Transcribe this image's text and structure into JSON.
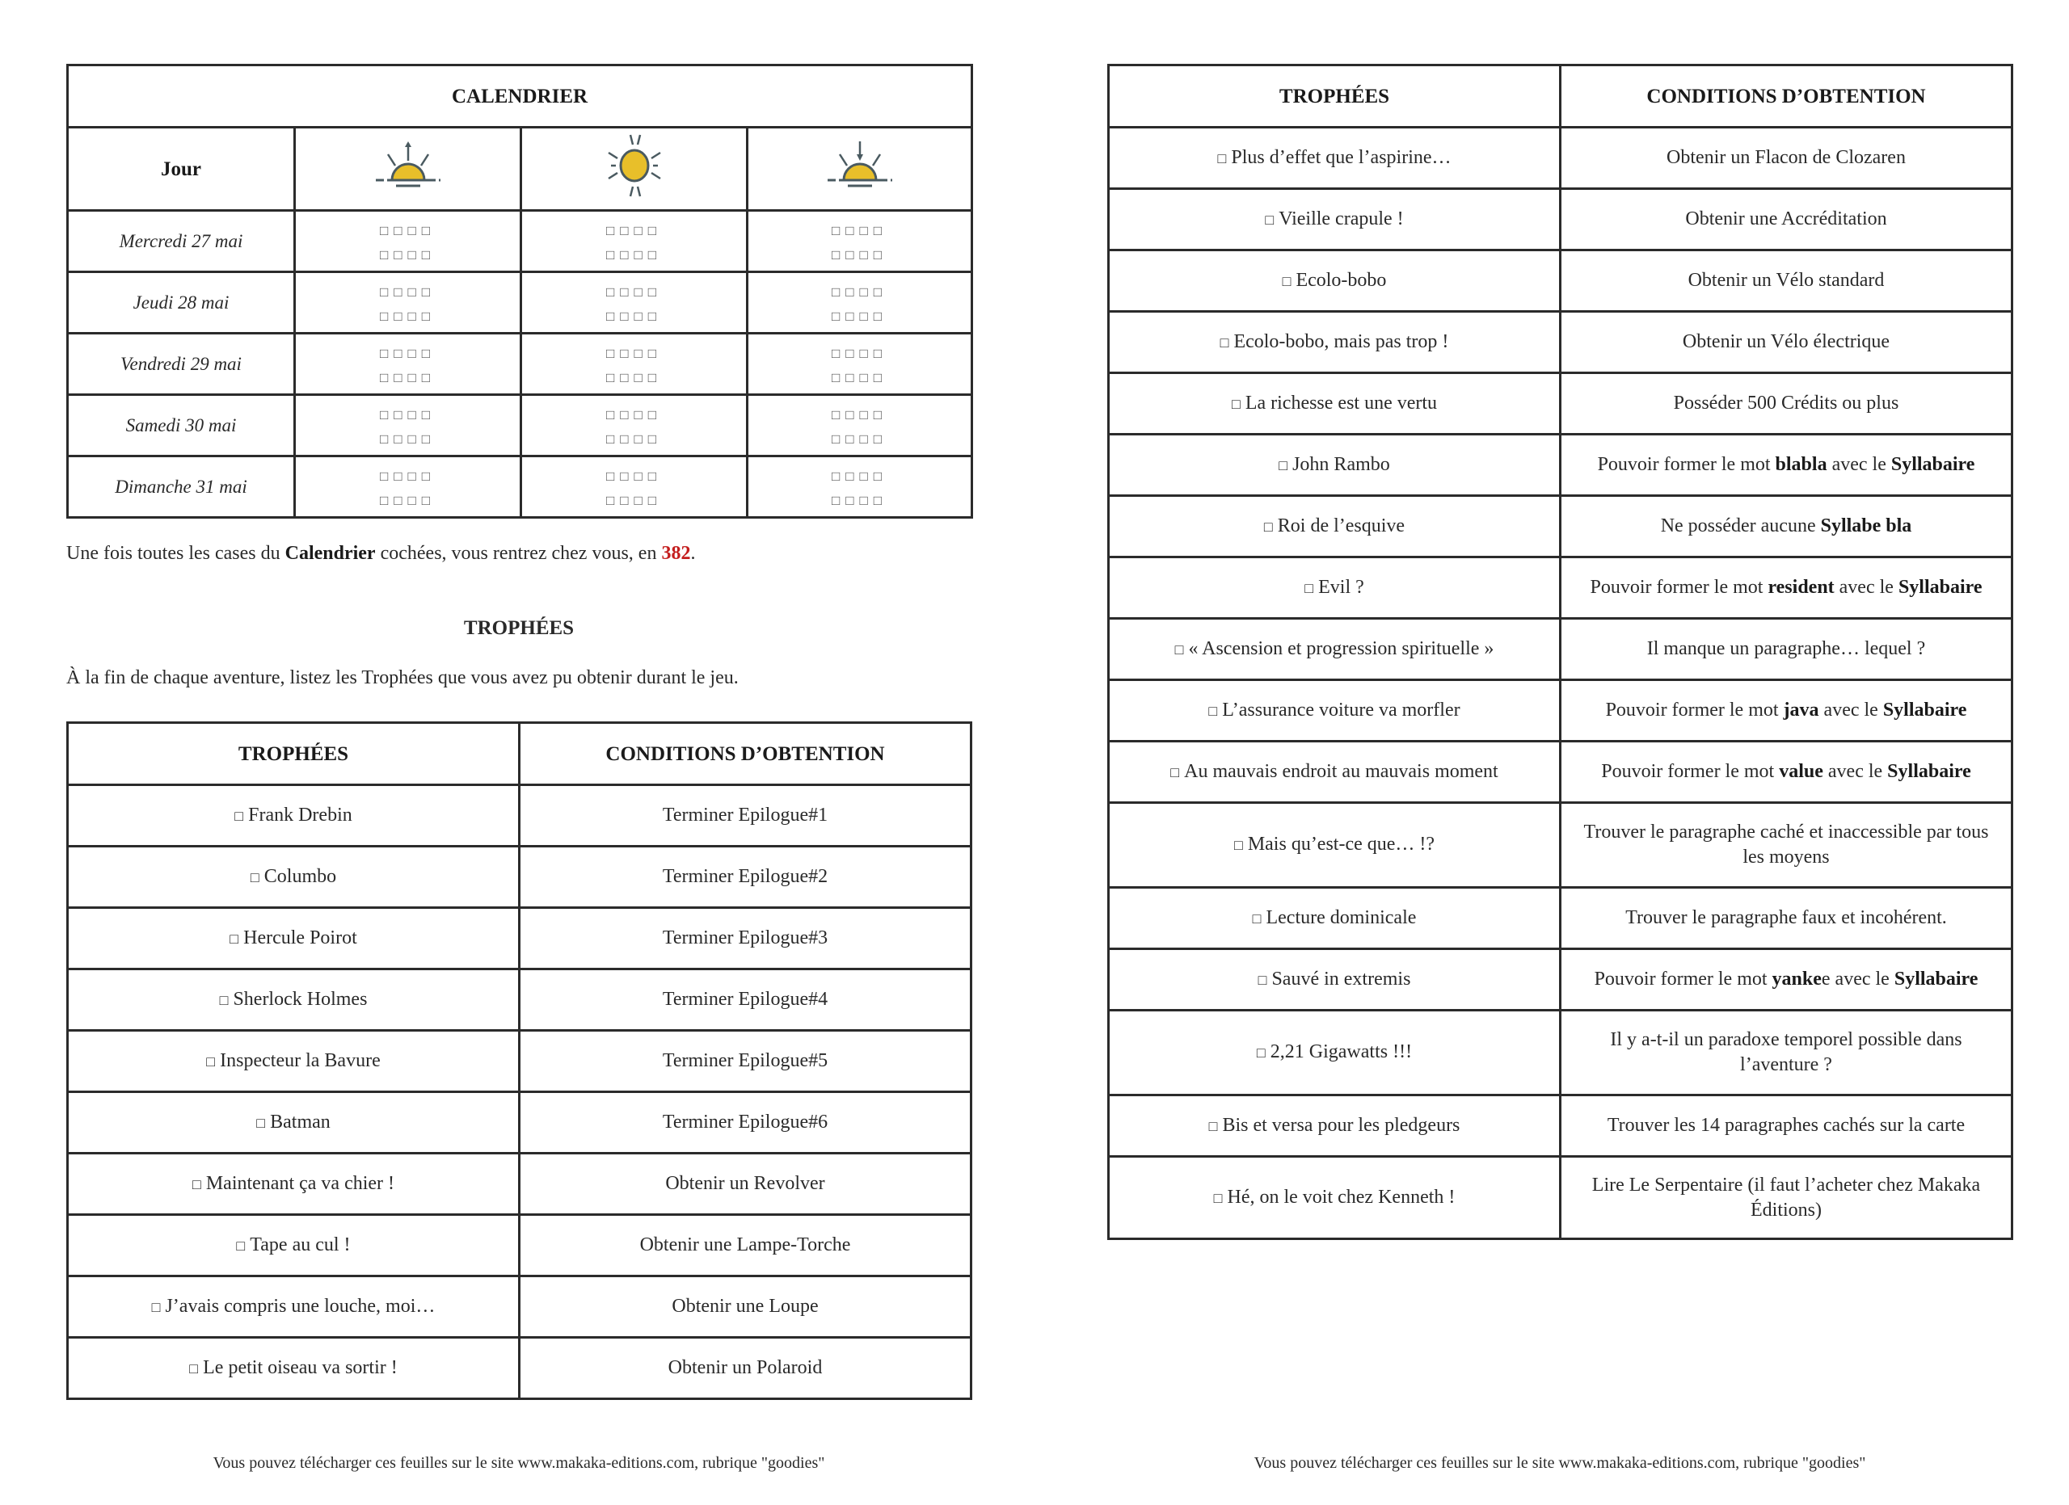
{
  "calendar": {
    "title": "CALENDRIER",
    "day_header": "Jour",
    "icons": [
      "sunrise-icon",
      "sun-icon",
      "sunset-icon"
    ],
    "checkbox_row": "□□□□",
    "days": [
      "Mercredi 27 mai",
      "Jeudi 28 mai",
      "Vendredi 29 mai",
      "Samedi 30 mai",
      "Dimanche 31 mai"
    ]
  },
  "note": {
    "pre": "Une fois toutes les cases du ",
    "bold": "Calendrier",
    "mid": " cochées, vous rentrez chez vous, en ",
    "number": "382",
    "post": "."
  },
  "trophies_section": {
    "title": "TROPHÉES",
    "intro": "À la fin de chaque aventure, listez les Trophées que vous avez pu obtenir durant le jeu."
  },
  "checkbox_glyph": "□",
  "table_headers": {
    "trophies": "TROPHÉES",
    "conditions": "CONDITIONS D’OBTENTION"
  },
  "left_trophies": [
    {
      "name": "Frank Drebin",
      "cond": [
        {
          "t": "Terminer Epilogue#1"
        }
      ]
    },
    {
      "name": "Columbo",
      "cond": [
        {
          "t": "Terminer Epilogue#2"
        }
      ]
    },
    {
      "name": "Hercule Poirot",
      "cond": [
        {
          "t": "Terminer Epilogue#3"
        }
      ]
    },
    {
      "name": "Sherlock Holmes",
      "cond": [
        {
          "t": "Terminer Epilogue#4"
        }
      ]
    },
    {
      "name": "Inspecteur la Bavure",
      "cond": [
        {
          "t": "Terminer Epilogue#5"
        }
      ]
    },
    {
      "name": "Batman",
      "cond": [
        {
          "t": "Terminer Epilogue#6"
        }
      ]
    },
    {
      "name": "Maintenant ça va chier !",
      "cond": [
        {
          "t": "Obtenir un Revolver"
        }
      ]
    },
    {
      "name": "Tape au cul !",
      "cond": [
        {
          "t": "Obtenir une Lampe-Torche"
        }
      ]
    },
    {
      "name": "J’avais compris une louche, moi…",
      "cond": [
        {
          "t": "Obtenir une Loupe"
        }
      ]
    },
    {
      "name": "Le petit oiseau va sortir !",
      "cond": [
        {
          "t": "Obtenir un Polaroid"
        }
      ]
    }
  ],
  "right_trophies": [
    {
      "name": "Plus d’effet que l’aspirine…",
      "cond": [
        {
          "t": "Obtenir un Flacon de Clozaren"
        }
      ]
    },
    {
      "name": "Vieille crapule !",
      "cond": [
        {
          "t": "Obtenir une Accréditation"
        }
      ]
    },
    {
      "name": "Ecolo-bobo",
      "cond": [
        {
          "t": "Obtenir un Vélo standard"
        }
      ]
    },
    {
      "name": "Ecolo-bobo, mais pas trop !",
      "cond": [
        {
          "t": "Obtenir un Vélo électrique"
        }
      ]
    },
    {
      "name": "La richesse est une vertu",
      "cond": [
        {
          "t": "Posséder 500 Crédits ou plus"
        }
      ]
    },
    {
      "name": "John Rambo",
      "cond": [
        {
          "t": "Pouvoir former le mot "
        },
        {
          "t": "blabla",
          "b": true
        },
        {
          "t": " avec le "
        },
        {
          "t": "Syllabaire",
          "b": true
        }
      ]
    },
    {
      "name": "Roi de l’esquive",
      "cond": [
        {
          "t": "Ne posséder aucune "
        },
        {
          "t": "Syllabe bla",
          "b": true
        }
      ]
    },
    {
      "name": "Evil ?",
      "cond": [
        {
          "t": "Pouvoir former le mot "
        },
        {
          "t": "resident",
          "b": true
        },
        {
          "t": " avec le "
        },
        {
          "t": "Syllabaire",
          "b": true
        }
      ]
    },
    {
      "name": "« Ascension et progression spirituelle »",
      "cond": [
        {
          "t": "Il manque un paragraphe… lequel ?"
        }
      ]
    },
    {
      "name": "L’assurance voiture va morfler",
      "cond": [
        {
          "t": "Pouvoir former le mot "
        },
        {
          "t": "java",
          "b": true
        },
        {
          "t": " avec le "
        },
        {
          "t": "Syllabaire",
          "b": true
        }
      ]
    },
    {
      "name": "Au mauvais endroit au mauvais moment",
      "cond": [
        {
          "t": "Pouvoir former le mot "
        },
        {
          "t": "value",
          "b": true
        },
        {
          "t": " avec le "
        },
        {
          "t": "Syllabaire",
          "b": true
        }
      ]
    },
    {
      "name": "Mais qu’est-ce que… !?",
      "cond": [
        {
          "t": "Trouver le paragraphe caché et inaccessible par tous les moyens"
        }
      ]
    },
    {
      "name": "Lecture dominicale",
      "cond": [
        {
          "t": "Trouver le paragraphe faux et incohérent."
        }
      ]
    },
    {
      "name": "Sauvé in extremis",
      "cond": [
        {
          "t": "Pouvoir former le mot "
        },
        {
          "t": "yanke",
          "b": true
        },
        {
          "t": "e avec le "
        },
        {
          "t": "Syllabaire",
          "b": true
        }
      ]
    },
    {
      "name": "2,21 Gigawatts !!!",
      "cond": [
        {
          "t": "Il y a-t-il un paradoxe temporel possible dans l’aventure ?"
        }
      ]
    },
    {
      "name": "Bis et versa  pour les pledgeurs",
      "cond": [
        {
          "t": "Trouver les 14 paragraphes cachés sur la carte"
        }
      ]
    },
    {
      "name": "Hé, on le voit chez Kenneth !",
      "cond": [
        {
          "t": "Lire Le Serpentaire (il faut l’acheter chez Makaka Éditions)"
        }
      ]
    }
  ],
  "footer": "Vous pouvez télécharger ces feuilles sur le site www.makaka-editions.com, rubrique \"goodies\"",
  "colors": {
    "sun": "#e8bf2a",
    "icon_stroke": "#4a5a60",
    "highlight": "#c41e1e"
  }
}
